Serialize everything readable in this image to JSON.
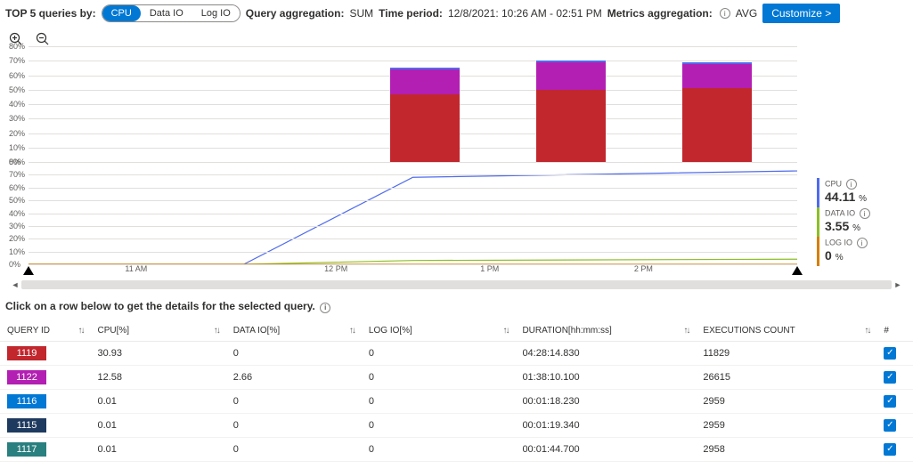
{
  "topbar": {
    "label_top5": "TOP 5 queries by:",
    "pills": [
      "CPU",
      "Data IO",
      "Log IO"
    ],
    "active_pill_index": 0,
    "label_query_agg": "Query aggregation:",
    "query_agg_value": "SUM",
    "label_time_period": "Time period:",
    "time_period_value": "12/8/2021: 10:26 AM - 02:51 PM",
    "label_metrics_agg": "Metrics aggregation:",
    "metrics_agg_value": "AVG",
    "customize_button": "Customize >"
  },
  "bar_chart": {
    "type": "stacked-bar",
    "ylim": [
      0,
      80
    ],
    "ytick_step": 10,
    "ylabels": [
      "0%",
      "10%",
      "20%",
      "30%",
      "40%",
      "50%",
      "60%",
      "70%",
      "80%"
    ],
    "grid_color": "#e1dfdd",
    "bars": [
      {
        "x_pct": 47,
        "segments": [
          {
            "value": 47,
            "color": "#c1272d"
          },
          {
            "value": 17,
            "color": "#b31fb3"
          }
        ]
      },
      {
        "x_pct": 66,
        "segments": [
          {
            "value": 50,
            "color": "#c1272d"
          },
          {
            "value": 19,
            "color": "#b31fb3"
          }
        ]
      },
      {
        "x_pct": 85,
        "segments": [
          {
            "value": 51,
            "color": "#c1272d"
          },
          {
            "value": 17,
            "color": "#b31fb3"
          }
        ]
      }
    ],
    "cap_color": "#4f6bed"
  },
  "line_chart": {
    "type": "line",
    "ylim": [
      0,
      80
    ],
    "ytick_step": 10,
    "ylabels": [
      "0%",
      "10%",
      "20%",
      "30%",
      "40%",
      "50%",
      "60%",
      "70%",
      "80%"
    ],
    "grid_color": "#e1dfdd",
    "series": [
      {
        "name": "CPU",
        "color": "#4f6bed",
        "points": [
          [
            0,
            0
          ],
          [
            28,
            0
          ],
          [
            50,
            68
          ],
          [
            100,
            73
          ]
        ],
        "stroke_width": 1.2
      },
      {
        "name": "DataIO",
        "color": "#8cbf26",
        "points": [
          [
            0,
            0
          ],
          [
            28,
            0
          ],
          [
            50,
            3
          ],
          [
            100,
            4
          ]
        ],
        "stroke_width": 1.2
      },
      {
        "name": "LogIO",
        "color": "#d67f00",
        "points": [
          [
            0,
            0
          ],
          [
            100,
            0
          ]
        ],
        "stroke_width": 1.2
      }
    ]
  },
  "xaxis": {
    "ticks": [
      {
        "pos_pct": 14,
        "label": "11 AM"
      },
      {
        "pos_pct": 40,
        "label": "12 PM"
      },
      {
        "pos_pct": 60,
        "label": "1 PM"
      },
      {
        "pos_pct": 80,
        "label": "2 PM"
      }
    ]
  },
  "legend": [
    {
      "label": "CPU",
      "value": "44.11",
      "unit": "%",
      "color": "#4f6bed"
    },
    {
      "label": "DATA IO",
      "value": "3.55",
      "unit": "%",
      "color": "#8cbf26"
    },
    {
      "label": "LOG IO",
      "value": "0",
      "unit": "%",
      "color": "#d67f00"
    }
  ],
  "instruction": "Click on a row below to get the details for the selected query.",
  "table": {
    "columns": [
      "QUERY ID",
      "CPU[%]",
      "DATA IO[%]",
      "LOG IO[%]",
      "DURATION[hh:mm:ss]",
      "EXECUTIONS COUNT",
      "#"
    ],
    "rows": [
      {
        "id": "1119",
        "color": "#c1272d",
        "cpu": "30.93",
        "dataio": "0",
        "logio": "0",
        "duration": "04:28:14.830",
        "exec": "11829",
        "checked": true
      },
      {
        "id": "1122",
        "color": "#b31fb3",
        "cpu": "12.58",
        "dataio": "2.66",
        "logio": "0",
        "duration": "01:38:10.100",
        "exec": "26615",
        "checked": true
      },
      {
        "id": "1116",
        "color": "#0078d4",
        "cpu": "0.01",
        "dataio": "0",
        "logio": "0",
        "duration": "00:01:18.230",
        "exec": "2959",
        "checked": true
      },
      {
        "id": "1115",
        "color": "#1f3a5f",
        "cpu": "0.01",
        "dataio": "0",
        "logio": "0",
        "duration": "00:01:19.340",
        "exec": "2959",
        "checked": true
      },
      {
        "id": "1117",
        "color": "#2a7f7f",
        "cpu": "0.01",
        "dataio": "0",
        "logio": "0",
        "duration": "00:01:44.700",
        "exec": "2958",
        "checked": true
      }
    ]
  }
}
